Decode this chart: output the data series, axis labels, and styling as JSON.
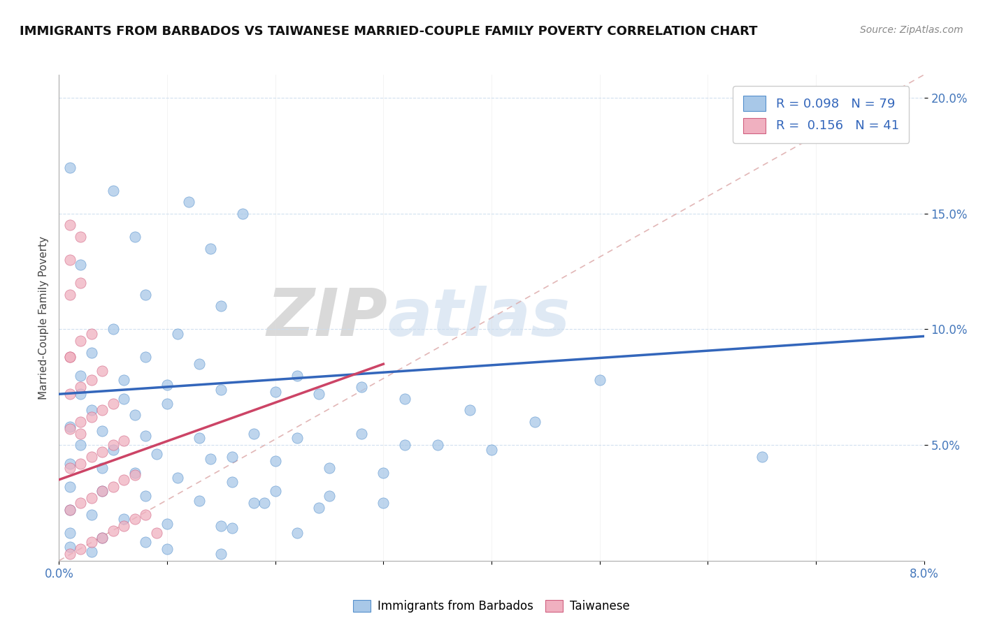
{
  "title": "IMMIGRANTS FROM BARBADOS VS TAIWANESE MARRIED-COUPLE FAMILY POVERTY CORRELATION CHART",
  "source_text": "Source: ZipAtlas.com",
  "ylabel": "Married-Couple Family Poverty",
  "xlim": [
    0.0,
    0.08
  ],
  "ylim": [
    0.0,
    0.21
  ],
  "yticks": [
    0.05,
    0.1,
    0.15,
    0.2
  ],
  "ytick_labels": [
    "5.0%",
    "10.0%",
    "15.0%",
    "20.0%"
  ],
  "legend_R1": "0.098",
  "legend_N1": "79",
  "legend_R2": "0.156",
  "legend_N2": "41",
  "blue_scatter_color": "#a8c8e8",
  "blue_scatter_edge": "#5590cc",
  "pink_scatter_color": "#f0b0c0",
  "pink_scatter_edge": "#d06080",
  "blue_line_color": "#3366bb",
  "pink_line_color": "#cc4466",
  "ref_line_color": "#ddaaaa",
  "watermark_color": "#c5d8ec",
  "watermark_text": "ZIPatlas",
  "blue_scatter": [
    [
      0.001,
      0.17
    ],
    [
      0.005,
      0.16
    ],
    [
      0.012,
      0.155
    ],
    [
      0.017,
      0.15
    ],
    [
      0.007,
      0.14
    ],
    [
      0.014,
      0.135
    ],
    [
      0.002,
      0.128
    ],
    [
      0.008,
      0.115
    ],
    [
      0.015,
      0.11
    ],
    [
      0.005,
      0.1
    ],
    [
      0.011,
      0.098
    ],
    [
      0.003,
      0.09
    ],
    [
      0.008,
      0.088
    ],
    [
      0.013,
      0.085
    ],
    [
      0.002,
      0.08
    ],
    [
      0.006,
      0.078
    ],
    [
      0.01,
      0.076
    ],
    [
      0.015,
      0.074
    ],
    [
      0.02,
      0.073
    ],
    [
      0.002,
      0.072
    ],
    [
      0.006,
      0.07
    ],
    [
      0.01,
      0.068
    ],
    [
      0.003,
      0.065
    ],
    [
      0.007,
      0.063
    ],
    [
      0.001,
      0.058
    ],
    [
      0.004,
      0.056
    ],
    [
      0.008,
      0.054
    ],
    [
      0.013,
      0.053
    ],
    [
      0.002,
      0.05
    ],
    [
      0.005,
      0.048
    ],
    [
      0.009,
      0.046
    ],
    [
      0.014,
      0.044
    ],
    [
      0.001,
      0.042
    ],
    [
      0.004,
      0.04
    ],
    [
      0.007,
      0.038
    ],
    [
      0.011,
      0.036
    ],
    [
      0.016,
      0.034
    ],
    [
      0.001,
      0.032
    ],
    [
      0.004,
      0.03
    ],
    [
      0.008,
      0.028
    ],
    [
      0.013,
      0.026
    ],
    [
      0.019,
      0.025
    ],
    [
      0.001,
      0.022
    ],
    [
      0.003,
      0.02
    ],
    [
      0.006,
      0.018
    ],
    [
      0.01,
      0.016
    ],
    [
      0.015,
      0.015
    ],
    [
      0.001,
      0.012
    ],
    [
      0.004,
      0.01
    ],
    [
      0.008,
      0.008
    ],
    [
      0.001,
      0.006
    ],
    [
      0.003,
      0.004
    ],
    [
      0.022,
      0.08
    ],
    [
      0.028,
      0.075
    ],
    [
      0.032,
      0.07
    ],
    [
      0.038,
      0.065
    ],
    [
      0.044,
      0.06
    ],
    [
      0.032,
      0.05
    ],
    [
      0.04,
      0.048
    ],
    [
      0.05,
      0.078
    ],
    [
      0.065,
      0.045
    ],
    [
      0.024,
      0.072
    ],
    [
      0.018,
      0.055
    ],
    [
      0.022,
      0.053
    ],
    [
      0.016,
      0.045
    ],
    [
      0.02,
      0.043
    ],
    [
      0.025,
      0.04
    ],
    [
      0.03,
      0.038
    ],
    [
      0.018,
      0.025
    ],
    [
      0.024,
      0.023
    ],
    [
      0.016,
      0.014
    ],
    [
      0.022,
      0.012
    ],
    [
      0.01,
      0.005
    ],
    [
      0.015,
      0.003
    ],
    [
      0.028,
      0.055
    ],
    [
      0.035,
      0.05
    ],
    [
      0.02,
      0.03
    ],
    [
      0.025,
      0.028
    ],
    [
      0.03,
      0.025
    ]
  ],
  "pink_scatter": [
    [
      0.001,
      0.145
    ],
    [
      0.002,
      0.14
    ],
    [
      0.001,
      0.13
    ],
    [
      0.002,
      0.12
    ],
    [
      0.001,
      0.115
    ],
    [
      0.003,
      0.098
    ],
    [
      0.002,
      0.095
    ],
    [
      0.001,
      0.088
    ],
    [
      0.004,
      0.082
    ],
    [
      0.003,
      0.078
    ],
    [
      0.002,
      0.075
    ],
    [
      0.001,
      0.072
    ],
    [
      0.005,
      0.068
    ],
    [
      0.004,
      0.065
    ],
    [
      0.003,
      0.062
    ],
    [
      0.002,
      0.06
    ],
    [
      0.001,
      0.057
    ],
    [
      0.006,
      0.052
    ],
    [
      0.005,
      0.05
    ],
    [
      0.004,
      0.047
    ],
    [
      0.003,
      0.045
    ],
    [
      0.002,
      0.042
    ],
    [
      0.001,
      0.04
    ],
    [
      0.007,
      0.037
    ],
    [
      0.006,
      0.035
    ],
    [
      0.005,
      0.032
    ],
    [
      0.004,
      0.03
    ],
    [
      0.003,
      0.027
    ],
    [
      0.002,
      0.025
    ],
    [
      0.001,
      0.022
    ],
    [
      0.008,
      0.02
    ],
    [
      0.007,
      0.018
    ],
    [
      0.006,
      0.015
    ],
    [
      0.005,
      0.013
    ],
    [
      0.004,
      0.01
    ],
    [
      0.003,
      0.008
    ],
    [
      0.002,
      0.005
    ],
    [
      0.001,
      0.003
    ],
    [
      0.009,
      0.012
    ],
    [
      0.001,
      0.088
    ],
    [
      0.002,
      0.055
    ]
  ],
  "blue_line": {
    "x0": 0.0,
    "y0": 0.072,
    "x1": 0.08,
    "y1": 0.097
  },
  "pink_line": {
    "x0": 0.0,
    "y0": 0.035,
    "x1": 0.03,
    "y1": 0.085
  },
  "ref_line": {
    "x0": 0.0,
    "y0": 0.0,
    "x1": 0.08,
    "y1": 0.21
  }
}
